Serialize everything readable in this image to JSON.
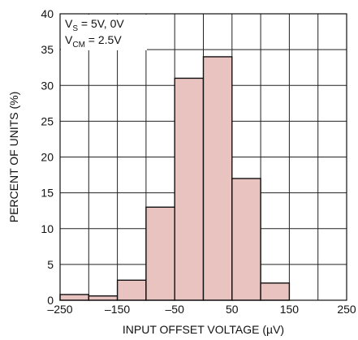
{
  "chart_data": {
    "type": "bar",
    "title": "",
    "xlabel": "INPUT OFFSET VOLTAGE (µV)",
    "ylabel": "PERCENT OF UNITS (%)",
    "xlim": [
      -250,
      250
    ],
    "ylim": [
      0,
      40
    ],
    "xticks": [
      -250,
      -150,
      -50,
      50,
      150,
      250
    ],
    "xtick_labels": [
      "–250",
      "–150",
      "–50",
      "50",
      "150",
      "250"
    ],
    "yticks": [
      0,
      5,
      10,
      15,
      20,
      25,
      30,
      35,
      40
    ],
    "grid": true,
    "bar_color": "#e8c3bf",
    "bins": [
      {
        "x0": -250,
        "x1": -200,
        "value": 0.8
      },
      {
        "x0": -200,
        "x1": -150,
        "value": 0.6
      },
      {
        "x0": -150,
        "x1": -100,
        "value": 2.8
      },
      {
        "x0": -100,
        "x1": -50,
        "value": 13
      },
      {
        "x0": -50,
        "x1": 0,
        "value": 31
      },
      {
        "x0": 0,
        "x1": 50,
        "value": 34
      },
      {
        "x0": 50,
        "x1": 100,
        "value": 17
      },
      {
        "x0": 100,
        "x1": 150,
        "value": 2.4
      }
    ],
    "annotation": {
      "line1": {
        "main": "V",
        "sub": "S",
        "rest": " = 5V, 0V"
      },
      "line2": {
        "main": "V",
        "sub": "CM",
        "rest": " = 2.5V"
      }
    }
  }
}
